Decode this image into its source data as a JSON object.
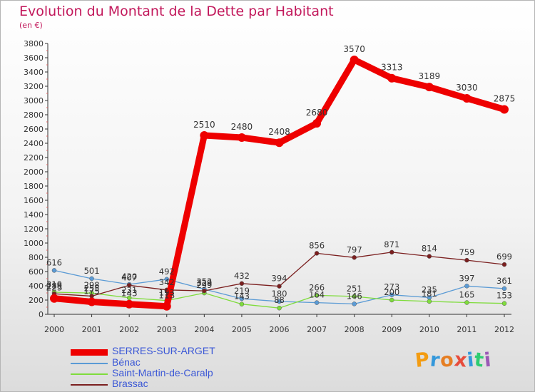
{
  "title": "Evolution du Montant de la Dette par Habitant",
  "subtitle": "(en €)",
  "logo_text": "Proxiti",
  "colors": {
    "title": "#c2185b",
    "axis": "#333333",
    "legend_text": "#3a57d6"
  },
  "chart_data": {
    "type": "line",
    "title": "Evolution du Montant de la Dette par Habitant",
    "subtitle": "(en €)",
    "xlabel": "",
    "ylabel": "",
    "x": [
      "2000",
      "2001",
      "2002",
      "2003",
      "2004",
      "2005",
      "2006",
      "2007",
      "2008",
      "2009",
      "2010",
      "2011",
      "2012"
    ],
    "ylim": [
      0,
      3800
    ],
    "yticks": [
      0,
      200,
      400,
      600,
      800,
      1000,
      1200,
      1400,
      1600,
      1800,
      2000,
      2200,
      2400,
      2600,
      2800,
      3000,
      3200,
      3400,
      3600,
      3800
    ],
    "grid": false,
    "legend_position": "bottom-left",
    "series": [
      {
        "name": "SERRES-SUR-ARGET",
        "color": "#ee0000",
        "values": [
          223,
          175,
          143,
          113,
          2510,
          2480,
          2408,
          2680,
          3570,
          3313,
          3189,
          3030,
          2875
        ],
        "labels": [
          "223",
          "175",
          "143",
          "113",
          "2510",
          "2480",
          "2408",
          "2680",
          "3570",
          "3313",
          "3189",
          "3030",
          "2875"
        ]
      },
      {
        "name": "Bénac",
        "color": "#5b9bd5",
        "values": [
          616,
          501,
          420,
          492,
          352,
          219,
          180,
          164,
          146,
          273,
          235,
          397,
          361
        ],
        "labels": [
          "616",
          "501",
          "420",
          "492",
          "352",
          "219",
          "180",
          "164",
          "146",
          "273",
          "235",
          "397",
          "361"
        ]
      },
      {
        "name": "Saint-Martin-de-Caralp",
        "color": "#7fdc3c",
        "values": [
          310,
          298,
          231,
          193,
          299,
          143,
          88,
          266,
          251,
          200,
          181,
          165,
          153
        ],
        "labels": [
          "310",
          "298",
          "231",
          "193",
          "299",
          "143",
          "88",
          "266",
          "251",
          "200",
          "181",
          "165",
          "153"
        ]
      },
      {
        "name": "Brassac",
        "color": "#7b1f1f",
        "values": [
          288,
          255,
          407,
          342,
          329,
          432,
          394,
          856,
          797,
          871,
          814,
          759,
          699
        ],
        "labels": [
          "288",
          "255",
          "407",
          "342",
          "329",
          "432",
          "394",
          "856",
          "797",
          "871",
          "814",
          "759",
          "699"
        ]
      }
    ]
  }
}
